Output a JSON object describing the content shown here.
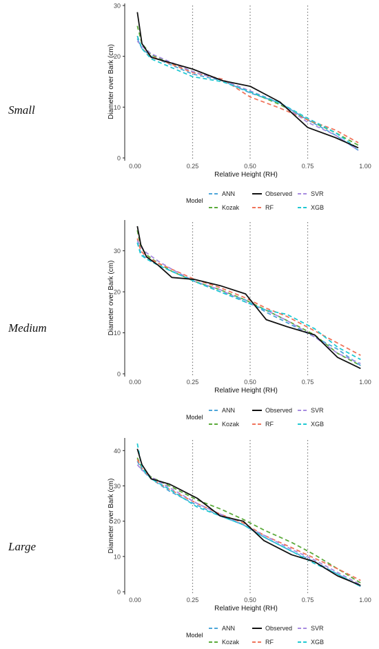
{
  "panels": [
    "Small",
    "Medium",
    "Large"
  ],
  "legend": {
    "title": "Model",
    "entries": [
      {
        "name": "ANN",
        "color": "#4DA6D9"
      },
      {
        "name": "Observed",
        "color": "#111111"
      },
      {
        "name": "SVR",
        "color": "#A78BE0"
      },
      {
        "name": "Kozak",
        "color": "#5BAA3A"
      },
      {
        "name": "RF",
        "color": "#F0735A"
      },
      {
        "name": "XGB",
        "color": "#1FC8D2"
      }
    ]
  },
  "chart_data": [
    {
      "type": "line",
      "panel": "Small",
      "xlabel": "Relative Height (RH)",
      "ylabel": "Diameter over Bark (cm)",
      "xlim": [
        0,
        1
      ],
      "ylim": [
        0,
        30
      ],
      "xticks": [
        "0.00",
        "0.25",
        "0.50",
        "0.75",
        "1.00"
      ],
      "yticks": [
        "0",
        "10",
        "20",
        "30"
      ],
      "vlines": [
        0.25,
        0.5,
        0.75
      ],
      "grid": false,
      "legend_position": "bottom",
      "series": [
        {
          "name": "Observed",
          "x": [
            0.01,
            0.03,
            0.07,
            0.25,
            0.38,
            0.5,
            0.63,
            0.75,
            0.87,
            0.97
          ],
          "y": [
            28.7,
            22.5,
            19.8,
            17.5,
            15.2,
            14.1,
            11.0,
            6.0,
            4.0,
            2.0
          ]
        },
        {
          "name": "Kozak",
          "x": [
            0.01,
            0.03,
            0.07,
            0.25,
            0.38,
            0.5,
            0.63,
            0.75,
            0.87,
            0.97
          ],
          "y": [
            26.0,
            22.5,
            20.3,
            17.0,
            15.3,
            13.0,
            10.5,
            7.5,
            5.0,
            2.5
          ]
        },
        {
          "name": "ANN",
          "x": [
            0.01,
            0.03,
            0.07,
            0.25,
            0.38,
            0.5,
            0.63,
            0.75,
            0.87,
            0.97
          ],
          "y": [
            23.5,
            21.5,
            20.0,
            16.5,
            15.2,
            12.8,
            10.8,
            7.5,
            4.5,
            1.5
          ]
        },
        {
          "name": "RF",
          "x": [
            0.01,
            0.03,
            0.07,
            0.25,
            0.38,
            0.5,
            0.63,
            0.75,
            0.87,
            0.97
          ],
          "y": [
            24.0,
            21.5,
            20.0,
            16.8,
            15.5,
            12.0,
            9.8,
            7.5,
            5.5,
            3.0
          ]
        },
        {
          "name": "SVR",
          "x": [
            0.01,
            0.03,
            0.07,
            0.25,
            0.38,
            0.5,
            0.63,
            0.75,
            0.87,
            0.97
          ],
          "y": [
            23.0,
            22.0,
            20.5,
            17.0,
            15.3,
            13.2,
            10.8,
            7.0,
            4.5,
            1.5
          ]
        },
        {
          "name": "XGB",
          "x": [
            0.01,
            0.03,
            0.07,
            0.25,
            0.38,
            0.5,
            0.63,
            0.75,
            0.87,
            0.97
          ],
          "y": [
            24.0,
            21.5,
            19.5,
            16.0,
            15.0,
            13.0,
            10.8,
            7.8,
            5.0,
            1.8
          ]
        }
      ]
    },
    {
      "type": "line",
      "panel": "Medium",
      "xlabel": "Relative Height (RH)",
      "ylabel": "Diameter over Bark (cm)",
      "xlim": [
        0,
        1
      ],
      "ylim": [
        0,
        37
      ],
      "xticks": [
        "0.00",
        "0.25",
        "0.50",
        "0.75",
        "1.00"
      ],
      "yticks": [
        "0",
        "10",
        "20",
        "30"
      ],
      "vlines": [
        0.25,
        0.5,
        0.75
      ],
      "grid": false,
      "legend_position": "bottom",
      "series": [
        {
          "name": "Observed",
          "x": [
            0.01,
            0.025,
            0.05,
            0.1,
            0.16,
            0.26,
            0.37,
            0.48,
            0.57,
            0.66,
            0.78,
            0.88,
            0.98
          ],
          "y": [
            36.0,
            31.5,
            28.5,
            26.5,
            23.5,
            23.0,
            21.5,
            19.5,
            13.2,
            11.5,
            9.5,
            4.0,
            1.3
          ]
        },
        {
          "name": "Kozak",
          "x": [
            0.01,
            0.025,
            0.05,
            0.1,
            0.16,
            0.26,
            0.37,
            0.48,
            0.57,
            0.66,
            0.78,
            0.88,
            0.98
          ],
          "y": [
            35.0,
            31.0,
            29.0,
            27.0,
            25.0,
            22.5,
            20.5,
            18.0,
            15.5,
            13.0,
            9.5,
            5.0,
            2.0
          ]
        },
        {
          "name": "ANN",
          "x": [
            0.01,
            0.025,
            0.05,
            0.1,
            0.16,
            0.26,
            0.37,
            0.48,
            0.57,
            0.66,
            0.78,
            0.88,
            0.98
          ],
          "y": [
            32.0,
            29.5,
            28.0,
            26.5,
            25.0,
            22.5,
            20.0,
            18.0,
            15.0,
            12.5,
            9.0,
            6.0,
            2.0
          ]
        },
        {
          "name": "RF",
          "x": [
            0.01,
            0.025,
            0.05,
            0.1,
            0.16,
            0.26,
            0.37,
            0.48,
            0.57,
            0.66,
            0.78,
            0.88,
            0.98
          ],
          "y": [
            33.0,
            30.0,
            28.5,
            27.0,
            25.5,
            23.0,
            21.0,
            18.5,
            16.0,
            14.0,
            10.5,
            7.5,
            4.5
          ]
        },
        {
          "name": "SVR",
          "x": [
            0.01,
            0.025,
            0.05,
            0.1,
            0.16,
            0.26,
            0.37,
            0.48,
            0.57,
            0.66,
            0.78,
            0.88,
            0.98
          ],
          "y": [
            32.5,
            31.0,
            29.5,
            27.5,
            25.5,
            22.5,
            20.5,
            17.5,
            15.5,
            13.0,
            9.0,
            5.0,
            2.5
          ]
        },
        {
          "name": "XGB",
          "x": [
            0.01,
            0.025,
            0.05,
            0.1,
            0.16,
            0.26,
            0.37,
            0.48,
            0.57,
            0.66,
            0.78,
            0.88,
            0.98
          ],
          "y": [
            32.0,
            29.0,
            28.0,
            26.5,
            25.0,
            22.5,
            20.0,
            17.5,
            15.5,
            14.5,
            11.0,
            6.5,
            3.5
          ]
        }
      ]
    },
    {
      "type": "line",
      "panel": "Large",
      "xlabel": "Relative Height (RH)",
      "ylabel": "Diameter over Bark (cm)",
      "xlim": [
        0,
        1
      ],
      "ylim": [
        0,
        43
      ],
      "xticks": [
        "0.00",
        "0.25",
        "0.50",
        "0.75",
        "1.00"
      ],
      "yticks": [
        "0",
        "10",
        "20",
        "30",
        "40"
      ],
      "vlines": [
        0.25,
        0.5,
        0.75
      ],
      "grid": false,
      "legend_position": "bottom",
      "series": [
        {
          "name": "Observed",
          "x": [
            0.01,
            0.03,
            0.07,
            0.15,
            0.27,
            0.37,
            0.47,
            0.56,
            0.68,
            0.78,
            0.88,
            0.98
          ],
          "y": [
            40.5,
            36.0,
            32.0,
            30.5,
            26.5,
            21.5,
            20.0,
            14.5,
            10.5,
            8.5,
            4.5,
            1.8
          ]
        },
        {
          "name": "Kozak",
          "x": [
            0.01,
            0.03,
            0.07,
            0.15,
            0.27,
            0.37,
            0.47,
            0.56,
            0.68,
            0.78,
            0.88,
            0.98
          ],
          "y": [
            38.0,
            35.0,
            32.5,
            30.0,
            26.0,
            23.5,
            20.5,
            17.5,
            14.0,
            10.5,
            6.5,
            2.5
          ]
        },
        {
          "name": "ANN",
          "x": [
            0.01,
            0.03,
            0.07,
            0.15,
            0.27,
            0.37,
            0.47,
            0.56,
            0.68,
            0.78,
            0.88,
            0.98
          ],
          "y": [
            37.0,
            34.5,
            32.0,
            28.5,
            24.5,
            21.5,
            19.0,
            15.5,
            11.5,
            8.5,
            5.0,
            1.5
          ]
        },
        {
          "name": "RF",
          "x": [
            0.01,
            0.03,
            0.07,
            0.15,
            0.27,
            0.37,
            0.47,
            0.56,
            0.68,
            0.78,
            0.88,
            0.98
          ],
          "y": [
            37.5,
            35.0,
            32.0,
            29.0,
            25.0,
            22.0,
            19.5,
            16.0,
            12.5,
            9.5,
            6.5,
            3.2
          ]
        },
        {
          "name": "SVR",
          "x": [
            0.01,
            0.03,
            0.07,
            0.15,
            0.27,
            0.37,
            0.47,
            0.56,
            0.68,
            0.78,
            0.88,
            0.98
          ],
          "y": [
            36.0,
            34.5,
            32.5,
            29.5,
            25.0,
            22.0,
            19.0,
            16.0,
            12.0,
            9.0,
            5.5,
            2.0
          ]
        },
        {
          "name": "XGB",
          "x": [
            0.01,
            0.03,
            0.07,
            0.15,
            0.27,
            0.37,
            0.47,
            0.56,
            0.68,
            0.78,
            0.88,
            0.98
          ],
          "y": [
            42.0,
            35.0,
            32.0,
            29.0,
            24.0,
            21.5,
            19.0,
            15.5,
            11.5,
            8.0,
            5.0,
            1.5
          ]
        }
      ]
    }
  ]
}
